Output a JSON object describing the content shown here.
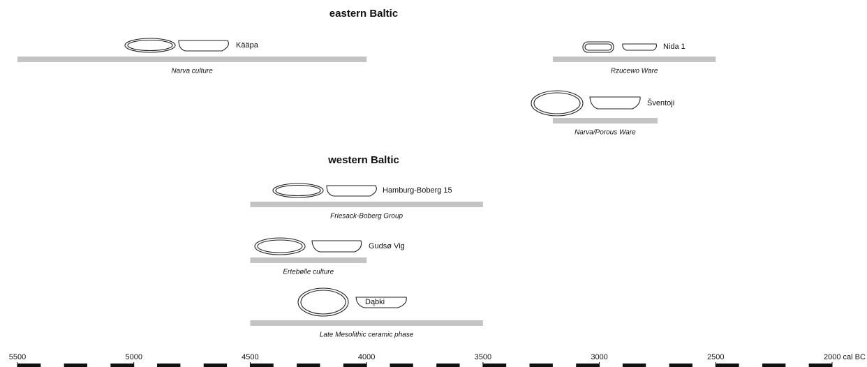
{
  "chart_data": {
    "type": "timeline",
    "groups": [
      {
        "title": "eastern Baltic",
        "items": [
          {
            "site": "Kääpa",
            "culture": "Narva culture",
            "start": 5500,
            "end": 4000
          },
          {
            "site": "Nida 1",
            "culture": "Rzucewo Ware",
            "start": 3200,
            "end": 2500
          },
          {
            "site": "Šventoji",
            "culture": "Narva/Porous Ware",
            "start": 3200,
            "end": 2750
          }
        ]
      },
      {
        "title": "western Baltic",
        "items": [
          {
            "site": "Hamburg-Boberg 15",
            "culture": "Friesack-Boberg Group",
            "start": 4500,
            "end": 3500
          },
          {
            "site": "Gudsø Vig",
            "culture": "Ertebølle culture",
            "start": 4500,
            "end": 4000
          },
          {
            "site": "Dąbki",
            "culture": "Late Mesolithic ceramic phase",
            "start": 4500,
            "end": 3500
          }
        ]
      }
    ],
    "bar_color": "#c4c4c4",
    "xlim": [
      5500,
      2000
    ],
    "xticks": [
      5500,
      5000,
      4500,
      4000,
      3500,
      3000,
      2500,
      {
        "value": 2000,
        "label": "2000 cal BC"
      }
    ]
  }
}
